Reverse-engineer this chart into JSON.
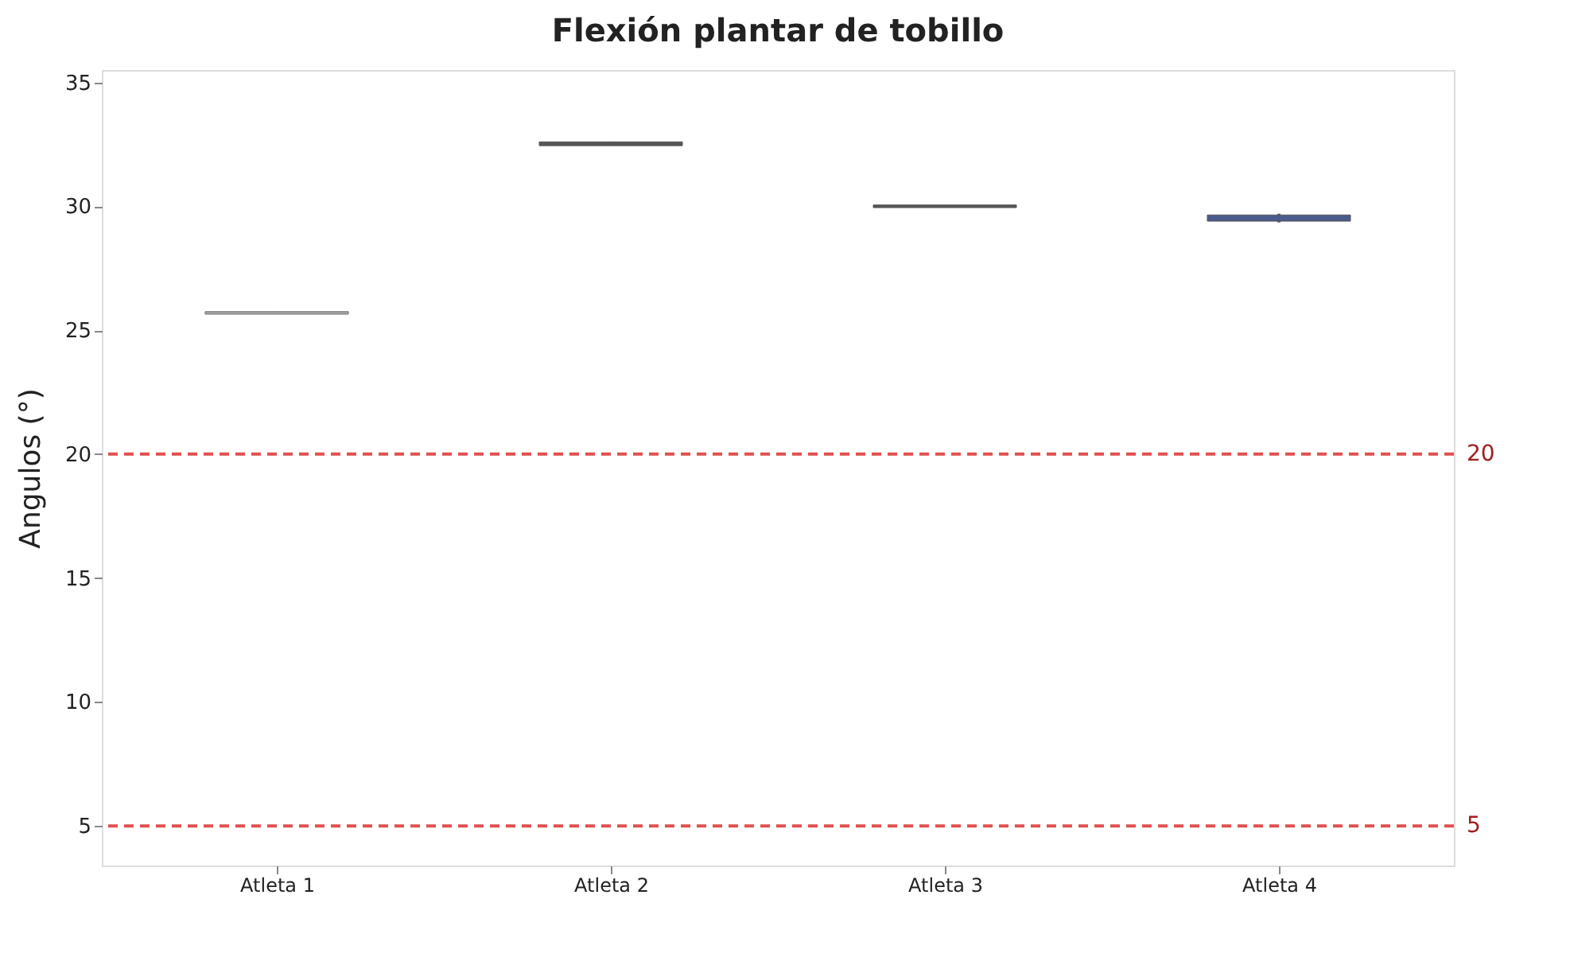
{
  "chart_data": {
    "type": "box",
    "title": "Flexión plantar de tobillo",
    "ylabel": "Angulos (°)",
    "categories": [
      "Atleta 1",
      "Atleta 2",
      "Atleta 3",
      "Atleta 4"
    ],
    "boxes": [
      {
        "low": 25.65,
        "q1": 25.65,
        "median": 25.7,
        "q3": 25.75,
        "high": 25.75
      },
      {
        "low": 32.45,
        "q1": 32.45,
        "median": 32.5,
        "q3": 32.6,
        "high": 32.6
      },
      {
        "low": 29.95,
        "q1": 29.95,
        "median": 30.0,
        "q3": 30.05,
        "high": 30.05
      },
      {
        "low": 29.35,
        "q1": 29.4,
        "median": 29.5,
        "q3": 29.65,
        "high": 29.7
      }
    ],
    "colors": [
      "#a0a0a0",
      "#555555",
      "#555555",
      "#4a5a8a"
    ],
    "ylim": [
      3.4,
      35.5
    ],
    "yticks": [
      5,
      10,
      15,
      20,
      25,
      30,
      35
    ],
    "ref_lines": [
      {
        "axis": "y",
        "value": 20,
        "label": "20",
        "color": "#e05050",
        "line_style": "dashed"
      },
      {
        "axis": "y",
        "value": 5,
        "label": "5",
        "color": "#e05050",
        "line_style": "dashed"
      }
    ],
    "grid": false
  }
}
